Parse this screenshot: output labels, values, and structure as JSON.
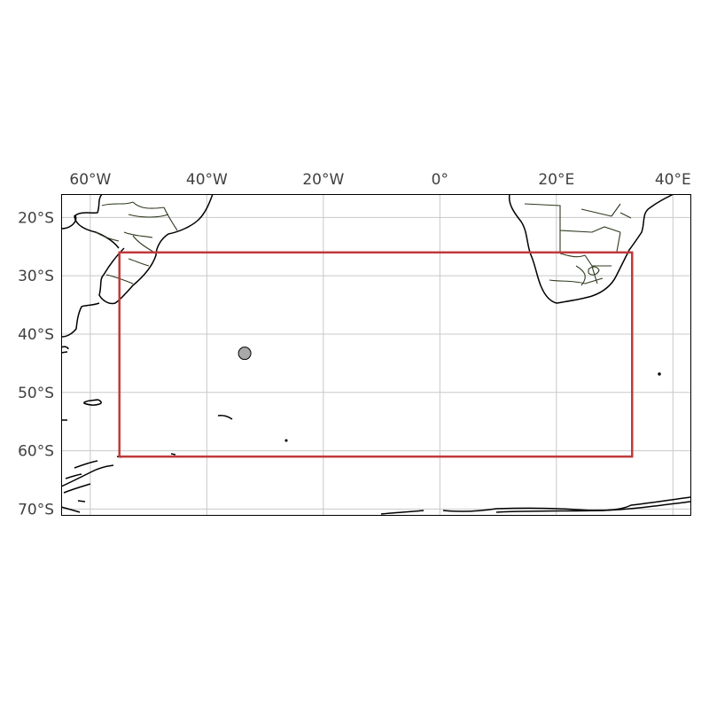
{
  "map": {
    "extent": {
      "lon": [
        -65,
        43
      ],
      "lat": [
        -71,
        -16
      ]
    },
    "projection": "PlateCarree",
    "gridlines": true,
    "lon_ticks": [
      {
        "value": -60,
        "label": "60°W"
      },
      {
        "value": -40,
        "label": "40°W"
      },
      {
        "value": -20,
        "label": "20°W"
      },
      {
        "value": 0,
        "label": "0°"
      },
      {
        "value": 20,
        "label": "20°E"
      },
      {
        "value": 40,
        "label": "40°E"
      }
    ],
    "lat_ticks": [
      {
        "value": -20,
        "label": "20°S"
      },
      {
        "value": -30,
        "label": "30°S"
      },
      {
        "value": -40,
        "label": "40°S"
      },
      {
        "value": -50,
        "label": "50°S"
      },
      {
        "value": -60,
        "label": "60°S"
      },
      {
        "value": -70,
        "label": "70°S"
      }
    ],
    "region_box": {
      "lon": [
        -55,
        33
      ],
      "lat": [
        -61,
        -26
      ],
      "color": "#c0393b"
    },
    "marker": {
      "lon": -33.5,
      "lat": -43.3,
      "color": "#a9a9a9"
    },
    "colors": {
      "coastline": "#000000",
      "borders": "#2e3a1f",
      "grid": "#c8c8c8"
    }
  }
}
